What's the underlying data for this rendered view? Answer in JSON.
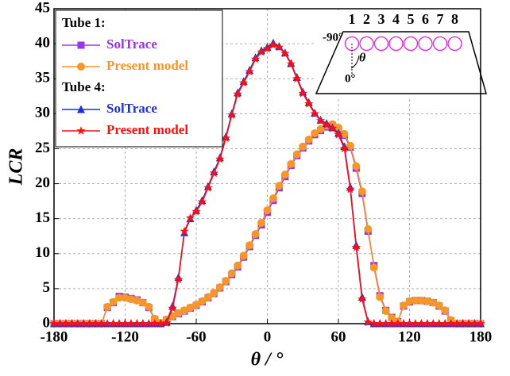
{
  "chart_data": {
    "type": "line",
    "x_label": "θ / °",
    "y_label": "LCR",
    "xlim": [
      -180,
      180
    ],
    "ylim": [
      0,
      45
    ],
    "xticks": [
      -180,
      -120,
      -60,
      0,
      60,
      120,
      180
    ],
    "yticks": [
      0,
      5,
      10,
      15,
      20,
      25,
      30,
      35,
      40,
      45
    ],
    "grid": true,
    "legend_position": "upper left",
    "legend_groups": [
      "Tube 1:",
      "Tube 4:"
    ],
    "inset_labels": [
      "1",
      "2",
      "3",
      "4",
      "5",
      "6",
      "7",
      "8",
      "-90°",
      "θ",
      "0°"
    ],
    "x": [
      -180,
      -175,
      -170,
      -165,
      -160,
      -155,
      -150,
      -145,
      -140,
      -135,
      -130,
      -125,
      -120,
      -115,
      -110,
      -105,
      -100,
      -95,
      -90,
      -85,
      -80,
      -75,
      -70,
      -65,
      -60,
      -55,
      -50,
      -45,
      -40,
      -35,
      -30,
      -25,
      -20,
      -15,
      -10,
      -5,
      0,
      5,
      10,
      15,
      20,
      25,
      30,
      35,
      40,
      45,
      50,
      55,
      60,
      65,
      70,
      75,
      80,
      85,
      90,
      95,
      100,
      105,
      110,
      115,
      120,
      125,
      130,
      135,
      140,
      145,
      150,
      155,
      160,
      165,
      170,
      175,
      180
    ],
    "series": [
      {
        "name": "SolTrace",
        "group": "Tube 1:",
        "marker": "square",
        "color": "#9933ee",
        "values": [
          0,
          0,
          0,
          0,
          0,
          0,
          0,
          0,
          0,
          2.3,
          3.0,
          3.9,
          3.8,
          3.6,
          3.4,
          3.0,
          2.3,
          0.6,
          0.1,
          0.5,
          1.0,
          1.4,
          1.8,
          2.2,
          2.6,
          3.1,
          3.7,
          4.3,
          5.1,
          6.0,
          7.0,
          8.1,
          9.5,
          11.0,
          12.6,
          14.1,
          15.9,
          17.6,
          19.4,
          21.0,
          22.6,
          24.0,
          25.1,
          26.1,
          27.0,
          27.6,
          28.1,
          28.3,
          27.8,
          26.9,
          25.2,
          22.2,
          18.6,
          13.2,
          8.3,
          4.0,
          1.9,
          0.9,
          0.3,
          2.5,
          3.1,
          3.3,
          3.3,
          3.2,
          3.0,
          2.5,
          1.8,
          0.4,
          0,
          0,
          0,
          0,
          0
        ]
      },
      {
        "name": "Present model",
        "group": "Tube 1:",
        "marker": "circle",
        "color": "#f5962a",
        "values": [
          0,
          0,
          0,
          0,
          0,
          0,
          0,
          0,
          0,
          2.4,
          3.1,
          3.7,
          3.7,
          3.5,
          3.3,
          3.0,
          2.4,
          0.7,
          0.1,
          0.6,
          1.1,
          1.5,
          1.9,
          2.3,
          2.7,
          3.2,
          3.8,
          4.4,
          5.2,
          6.1,
          7.2,
          8.3,
          9.7,
          11.2,
          12.8,
          14.4,
          16.2,
          17.9,
          19.7,
          21.3,
          22.8,
          24.2,
          25.3,
          26.3,
          27.2,
          27.8,
          28.3,
          28.5,
          28.0,
          27.1,
          25.4,
          22.5,
          18.9,
          13.5,
          8.0,
          3.8,
          1.8,
          0.8,
          0.3,
          2.6,
          3.2,
          3.3,
          3.3,
          3.2,
          3.0,
          2.6,
          1.9,
          0.5,
          0,
          0,
          0,
          0,
          0
        ]
      },
      {
        "name": "SolTrace",
        "group": "Tube 4:",
        "marker": "triangle",
        "color": "#1a2fe0",
        "values": [
          0,
          0,
          0,
          0,
          0,
          0,
          0,
          0,
          0,
          0,
          0,
          0,
          0,
          0,
          0,
          0,
          0,
          0,
          0,
          0.2,
          2.5,
          6.6,
          13.0,
          15.0,
          16.2,
          17.6,
          19.6,
          21.7,
          23.7,
          26.7,
          30.0,
          33.0,
          34.6,
          36.2,
          38.0,
          39.0,
          39.5,
          40.1,
          39.6,
          38.7,
          37.2,
          35.2,
          33.1,
          31.6,
          30.1,
          29.1,
          28.6,
          28.0,
          27.2,
          25.3,
          19.5,
          11.2,
          3.8,
          0.3,
          0,
          0,
          0,
          0,
          0,
          0,
          0,
          0,
          0,
          0,
          0,
          0,
          0,
          0,
          0,
          0,
          0,
          0,
          0
        ]
      },
      {
        "name": "Present model",
        "group": "Tube 4:",
        "marker": "star",
        "color": "#ff1010",
        "values": [
          0,
          0,
          0,
          0,
          0,
          0,
          0,
          0,
          0,
          0,
          0,
          0,
          0,
          0,
          0,
          0,
          0,
          0,
          0,
          0.1,
          2.2,
          6.3,
          13.2,
          15.1,
          16.0,
          17.4,
          19.4,
          21.5,
          23.5,
          26.5,
          29.8,
          32.8,
          34.4,
          36.0,
          37.8,
          38.8,
          39.3,
          39.8,
          39.5,
          38.6,
          37.1,
          35.0,
          32.9,
          31.4,
          30.0,
          29.0,
          28.4,
          27.9,
          27.0,
          25.0,
          19.2,
          10.9,
          3.5,
          0.2,
          0,
          0,
          0,
          0,
          0,
          0,
          0,
          0,
          0,
          0,
          0,
          0,
          0,
          0,
          0,
          0,
          0,
          0,
          0
        ]
      }
    ]
  }
}
